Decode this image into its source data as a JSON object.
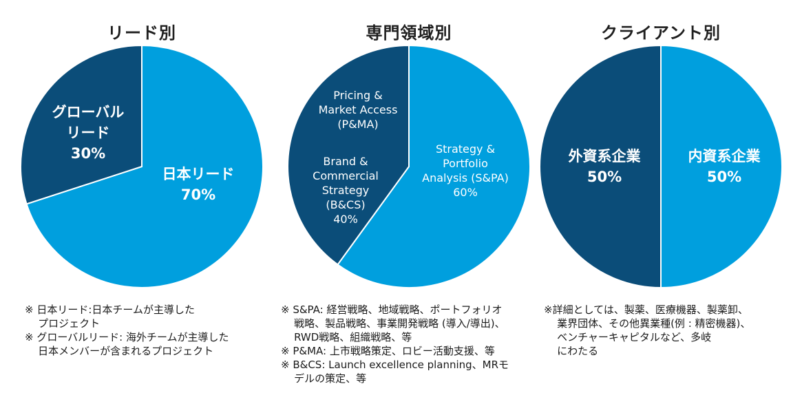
{
  "chart_data": [
    {
      "type": "pie",
      "title": "リード別",
      "slices": [
        {
          "label_lines": [
            "日本リード"
          ],
          "value": 70,
          "value_label": "70%",
          "color": "#009fde"
        },
        {
          "label_lines": [
            "グローバル",
            "リード"
          ],
          "value": 30,
          "value_label": "30%",
          "color": "#0b4d79"
        }
      ]
    },
    {
      "type": "pie",
      "title": "専門領域別",
      "slices": [
        {
          "label_lines": [
            "Strategy &",
            "Portfolio",
            "Analysis (S&PA)"
          ],
          "value": 60,
          "value_label": "60%",
          "color": "#009fde"
        },
        {
          "label_lines": [
            "Brand &",
            "Commercial",
            "Strategy",
            "(B&CS)"
          ],
          "value": 40,
          "value_label": "40%",
          "color": "#0b4d79",
          "extra_label_lines": [
            "Pricing &",
            "Market Access",
            "(P&MA)"
          ]
        }
      ]
    },
    {
      "type": "pie",
      "title": "クライアント別",
      "slices": [
        {
          "label_lines": [
            "内資系企業"
          ],
          "value": 50,
          "value_label": "50%",
          "color": "#009fde"
        },
        {
          "label_lines": [
            "外資系企業"
          ],
          "value": 50,
          "value_label": "50%",
          "color": "#0b4d79"
        }
      ]
    }
  ],
  "notes": [
    [
      "※ 日本リード:日本チームが主導した",
      "    プロジェクト",
      "※ グローバルリード: 海外チームが主導した",
      "    日本メンバーが含まれるプロジェクト"
    ],
    [
      "※ S&PA: 経営戦略、地域戦略、ポートフォリオ",
      "    戦略、製品戦略、事業開発戦略 (導入/導出)、",
      "    RWD戦略、組織戦略、等",
      "※ P&MA: 上市戦略策定、ロビー活動支援、等",
      "※ B&CS: Launch excellence planning、MRモ",
      "    デルの策定、等"
    ],
    [
      "※詳細としては、製薬、医療機器、製薬卸、",
      "    業界団体、その他異業種(例 : 精密機器)、",
      "    ベンチャーキャピタルなど、多岐",
      "    にわたる"
    ]
  ]
}
